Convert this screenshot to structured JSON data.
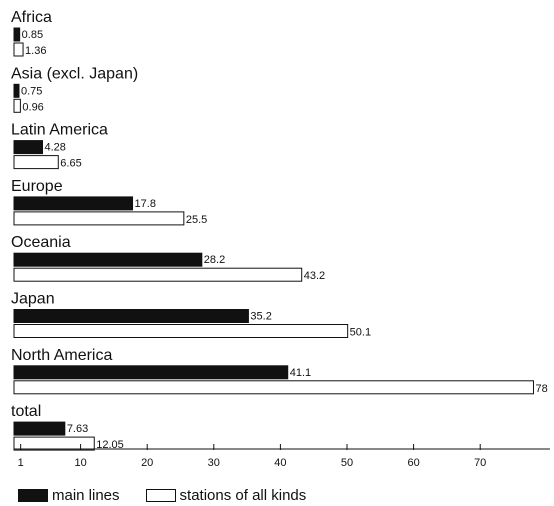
{
  "chart_data": {
    "type": "bar",
    "orientation": "horizontal",
    "categories": [
      "Africa",
      "Asia (excl. Japan)",
      "Latin America",
      "Europe",
      "Oceania",
      "Japan",
      "North America",
      "total"
    ],
    "series": [
      {
        "name": "main lines",
        "color": "#111111",
        "values": [
          0.85,
          0.75,
          4.28,
          17.8,
          28.2,
          35.2,
          41.1,
          7.63
        ],
        "labels": [
          "0.85",
          "0.75",
          "4.28",
          "17.8",
          "28.2",
          "35.2",
          "41.1",
          "7.63"
        ]
      },
      {
        "name": "stations of all kinds",
        "color": "#ffffff",
        "values": [
          1.36,
          0.96,
          6.65,
          25.5,
          43.2,
          50.1,
          78,
          12.05
        ],
        "labels": [
          "1.36",
          "0.96",
          "6.65",
          "25.5",
          "43.2",
          "50.1",
          "78",
          "12.05"
        ]
      }
    ],
    "x_ticks": [
      1,
      10,
      20,
      30,
      40,
      50,
      60,
      70
    ],
    "x_tick_labels": [
      "1",
      "10",
      "20",
      "30",
      "40",
      "50",
      "60",
      "70"
    ],
    "xlim": [
      0,
      78
    ],
    "grid": false,
    "legend_position": "bottom-left"
  }
}
